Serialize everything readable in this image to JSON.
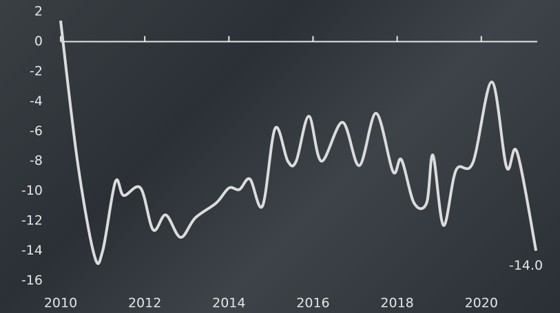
{
  "chart_data": {
    "type": "line",
    "x": [
      2010.0,
      2010.4,
      2010.8,
      2011.0,
      2011.3,
      2011.5,
      2011.9,
      2012.2,
      2012.5,
      2012.85,
      2013.2,
      2013.7,
      2014.0,
      2014.25,
      2014.5,
      2014.8,
      2015.1,
      2015.4,
      2015.6,
      2015.9,
      2016.2,
      2016.7,
      2017.1,
      2017.5,
      2017.9,
      2018.1,
      2018.4,
      2018.7,
      2018.85,
      2019.1,
      2019.4,
      2019.8,
      2020.25,
      2020.6,
      2020.85,
      2021.3
    ],
    "series": [
      {
        "color": "#dcdcdc",
        "values": [
          1.4,
          -8,
          -14.3,
          -14,
          -9.4,
          -10.3,
          -9.8,
          -12.6,
          -11.6,
          -13.1,
          -11.8,
          -10.8,
          -9.8,
          -9.9,
          -9.2,
          -11,
          -5.8,
          -8,
          -8,
          -5,
          -8,
          -5.4,
          -8.3,
          -4.8,
          -8.7,
          -7.9,
          -10.8,
          -10.8,
          -7.6,
          -12.3,
          -8.6,
          -8.1,
          -2.7,
          -8.4,
          -7.4,
          -14.0
        ],
        "value_labels": [
          null,
          null,
          null,
          null,
          null,
          null,
          null,
          null,
          null,
          null,
          null,
          null,
          null,
          null,
          null,
          null,
          null,
          null,
          null,
          null,
          null,
          null,
          null,
          null,
          null,
          null,
          null,
          null,
          null,
          null,
          null,
          null,
          null,
          null,
          null,
          "-14.0"
        ]
      }
    ],
    "xlim": [
      2010,
      2021.33
    ],
    "xticks": [
      2010,
      2012,
      2014,
      2016,
      2018,
      2020
    ],
    "ylim": [
      -16,
      2
    ],
    "yticks": [
      2,
      0,
      -2,
      -4,
      -6,
      -8,
      -10,
      -12,
      -14,
      -16
    ]
  }
}
